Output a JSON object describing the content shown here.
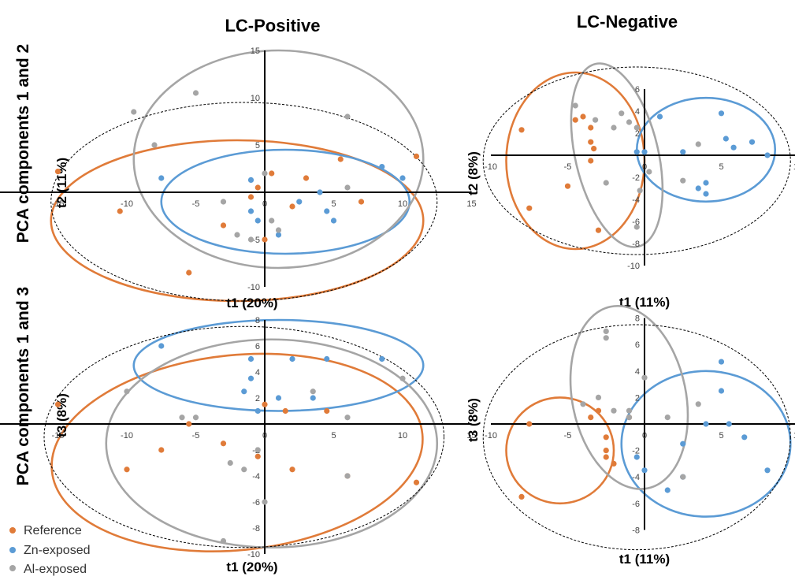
{
  "figure": {
    "col_titles": [
      "LC-Positive",
      "LC-Negative"
    ],
    "row_titles": [
      "PCA components 1 and 2",
      "PCA components 1 and 3"
    ],
    "legend": [
      {
        "label": "Reference",
        "color": "#e07b39"
      },
      {
        "label": "Zn-exposed",
        "color": "#5b9bd5"
      },
      {
        "label": "Al-exposed",
        "color": "#a5a5a5"
      }
    ]
  },
  "chart_data": [
    {
      "type": "scatter",
      "title": "LC-Positive",
      "xlabel": "t1 (20%)",
      "ylabel": "t2 (11%)",
      "xlim": [
        -20,
        15
      ],
      "ylim": [
        -10,
        15
      ],
      "xticks": [
        -20,
        -15,
        -10,
        -5,
        0,
        5,
        10,
        15
      ],
      "yticks": [
        -10,
        -5,
        5,
        10,
        15
      ],
      "series": [
        {
          "name": "Reference",
          "color": "#e07b39",
          "points": [
            [
              -15,
              2.2
            ],
            [
              -10.5,
              -2
            ],
            [
              -5.5,
              -8.5
            ],
            [
              -3,
              -3.5
            ],
            [
              -1,
              -0.5
            ],
            [
              -0.5,
              0.5
            ],
            [
              0,
              -5
            ],
            [
              0.5,
              2
            ],
            [
              2,
              -1.5
            ],
            [
              3,
              1.5
            ],
            [
              5.5,
              3.5
            ],
            [
              7,
              -1
            ],
            [
              11,
              3.8
            ]
          ]
        },
        {
          "name": "Zn-exposed",
          "color": "#5b9bd5",
          "points": [
            [
              -7.5,
              1.5
            ],
            [
              -1,
              1.3
            ],
            [
              -1,
              -2
            ],
            [
              -0.5,
              -3
            ],
            [
              1,
              -4.5
            ],
            [
              2.5,
              -1
            ],
            [
              4,
              0
            ],
            [
              4.5,
              -2
            ],
            [
              5,
              -3
            ],
            [
              8.5,
              2.7
            ],
            [
              10,
              1.5
            ]
          ]
        },
        {
          "name": "Al-exposed",
          "color": "#a5a5a5",
          "points": [
            [
              -9.5,
              8.5
            ],
            [
              -8,
              5
            ],
            [
              -5,
              10.5
            ],
            [
              -3,
              -1
            ],
            [
              -2,
              -4.5
            ],
            [
              -1,
              -5
            ],
            [
              0,
              2
            ],
            [
              0.5,
              -3
            ],
            [
              1,
              -4
            ],
            [
              6,
              8
            ],
            [
              6,
              0.5
            ]
          ]
        }
      ],
      "ellipses": [
        {
          "group": "Reference",
          "color": "#e07b39",
          "center": [
            -2,
            -3
          ],
          "radii": [
            13.5,
            8.5
          ],
          "rotation": 0
        },
        {
          "group": "Zn-exposed",
          "color": "#5b9bd5",
          "center": [
            1.5,
            -1
          ],
          "radii": [
            9,
            5.5
          ],
          "rotation": 0
        },
        {
          "group": "Al-exposed",
          "color": "#a5a5a5",
          "center": [
            1,
            3.5
          ],
          "radii": [
            10.5,
            11.5
          ],
          "rotation": 0
        },
        {
          "group": "Hotelling T2",
          "color": "#000000",
          "dashed": true,
          "center": [
            -1.5,
            -1
          ],
          "radii": [
            14,
            10.5
          ],
          "rotation": 0
        }
      ]
    },
    {
      "type": "scatter",
      "title": "LC-Negative",
      "xlabel": "t1 (11%)",
      "ylabel": "t2 (8%)",
      "xlim": [
        -10,
        10
      ],
      "ylim": [
        -10,
        6
      ],
      "xticks": [
        -10,
        -5,
        0,
        5,
        10
      ],
      "yticks": [
        -10,
        -8,
        -6,
        -4,
        -2,
        2,
        4,
        6
      ],
      "series": [
        {
          "name": "Reference",
          "color": "#e07b39",
          "points": [
            [
              -8,
              2.3
            ],
            [
              -7.5,
              -4.8
            ],
            [
              -5,
              -2.8
            ],
            [
              -4.5,
              3.2
            ],
            [
              -4,
              3.5
            ],
            [
              -3.5,
              2.5
            ],
            [
              -3.5,
              1.2
            ],
            [
              -3.3,
              0.6
            ],
            [
              -3.5,
              -0.5
            ],
            [
              -3,
              -6.8
            ]
          ]
        },
        {
          "name": "Zn-exposed",
          "color": "#5b9bd5",
          "points": [
            [
              -0.5,
              0.3
            ],
            [
              0,
              0.3
            ],
            [
              1,
              3.5
            ],
            [
              2.5,
              0.3
            ],
            [
              3.5,
              -3
            ],
            [
              4,
              -2.5
            ],
            [
              4,
              -3.5
            ],
            [
              5,
              3.8
            ],
            [
              5.3,
              1.5
            ],
            [
              5.8,
              0.7
            ],
            [
              7,
              1.2
            ],
            [
              8,
              0
            ]
          ]
        },
        {
          "name": "Al-exposed",
          "color": "#a5a5a5",
          "points": [
            [
              -4.5,
              4.5
            ],
            [
              -3.2,
              3.2
            ],
            [
              -2.5,
              -2.5
            ],
            [
              -2,
              2.5
            ],
            [
              -1.5,
              3.8
            ],
            [
              -1,
              3
            ],
            [
              -0.5,
              2.5
            ],
            [
              -0.3,
              -3.2
            ],
            [
              -0.5,
              -6.5
            ],
            [
              0.3,
              -1.5
            ],
            [
              2.5,
              -2.3
            ],
            [
              3.5,
              1
            ]
          ]
        }
      ],
      "ellipses": [
        {
          "group": "Reference",
          "color": "#e07b39",
          "center": [
            -4.5,
            -0.5
          ],
          "radii": [
            4.5,
            8
          ],
          "rotation": 0
        },
        {
          "group": "Zn-exposed",
          "color": "#5b9bd5",
          "center": [
            4,
            0.5
          ],
          "radii": [
            4.5,
            4.7
          ],
          "rotation": 0
        },
        {
          "group": "Al-exposed",
          "color": "#a5a5a5",
          "center": [
            -1.8,
            0
          ],
          "radii": [
            2.7,
            8.5
          ],
          "rotation": -0.23
        },
        {
          "group": "Hotelling T2",
          "color": "#000000",
          "dashed": true,
          "center": [
            -0.5,
            -0.5
          ],
          "radii": [
            10,
            8.5
          ],
          "rotation": 0
        }
      ]
    },
    {
      "type": "scatter",
      "title": "",
      "xlabel": "t1 (20%)",
      "ylabel": "t3 (8%)",
      "xlim": [
        -20,
        15
      ],
      "ylim": [
        -10,
        8
      ],
      "xticks": [
        -20,
        -15,
        -10,
        -5,
        0,
        5,
        10,
        15
      ],
      "yticks": [
        -10,
        -8,
        -6,
        -4,
        -2,
        2,
        4,
        6,
        8
      ],
      "series": [
        {
          "name": "Reference",
          "color": "#e07b39",
          "points": [
            [
              -15,
              1.5
            ],
            [
              -10,
              -3.5
            ],
            [
              -7.5,
              -2
            ],
            [
              -5.5,
              0
            ],
            [
              -3,
              -1.5
            ],
            [
              0,
              1.5
            ],
            [
              1.5,
              1
            ],
            [
              2,
              -3.5
            ],
            [
              4.5,
              1
            ],
            [
              6,
              -4
            ],
            [
              11,
              -4.5
            ],
            [
              -0.5,
              -2.5
            ]
          ]
        },
        {
          "name": "Zn-exposed",
          "color": "#5b9bd5",
          "points": [
            [
              -7.5,
              6
            ],
            [
              -1.5,
              2.5
            ],
            [
              -1,
              3.5
            ],
            [
              -1,
              5
            ],
            [
              -0.5,
              1
            ],
            [
              1,
              2
            ],
            [
              2,
              5
            ],
            [
              3.5,
              2
            ],
            [
              4.5,
              5
            ],
            [
              8.5,
              5
            ]
          ]
        },
        {
          "name": "Al-exposed",
          "color": "#a5a5a5",
          "points": [
            [
              -10,
              2.5
            ],
            [
              -6,
              0.5
            ],
            [
              -5,
              0.5
            ],
            [
              -2.5,
              -3
            ],
            [
              -1.5,
              -3.5
            ],
            [
              -0.5,
              -2
            ],
            [
              0,
              -6
            ],
            [
              3.5,
              2.5
            ],
            [
              6,
              0.5
            ],
            [
              6,
              -4
            ],
            [
              10,
              3.5
            ],
            [
              -3,
              -9
            ]
          ]
        }
      ],
      "ellipses": [
        {
          "group": "Reference",
          "color": "#e07b39",
          "center": [
            -2,
            -2.2
          ],
          "radii": [
            13.5,
            7.5
          ],
          "rotation": -0.1
        },
        {
          "group": "Zn-exposed",
          "color": "#5b9bd5",
          "center": [
            1,
            4.5
          ],
          "radii": [
            10.5,
            3.5
          ],
          "rotation": 0
        },
        {
          "group": "Al-exposed",
          "color": "#a5a5a5",
          "center": [
            0.5,
            -1.5
          ],
          "radii": [
            12,
            8
          ],
          "rotation": 0
        },
        {
          "group": "Hotelling T2",
          "color": "#000000",
          "dashed": true,
          "center": [
            -1.5,
            -1
          ],
          "radii": [
            14.5,
            8.5
          ],
          "rotation": 0
        }
      ]
    },
    {
      "type": "scatter",
      "title": "",
      "xlabel": "t1 (11%)",
      "ylabel": "t3 (8%)",
      "xlim": [
        -10,
        10
      ],
      "ylim": [
        -8,
        8
      ],
      "xticks": [
        -10,
        -5,
        0,
        5,
        10
      ],
      "yticks": [
        -8,
        -6,
        -4,
        -2,
        2,
        4,
        6,
        8
      ],
      "series": [
        {
          "name": "Reference",
          "color": "#e07b39",
          "points": [
            [
              -7.5,
              0
            ],
            [
              -8,
              -5.5
            ],
            [
              -3.5,
              0.5
            ],
            [
              -3,
              1
            ],
            [
              -2.5,
              -1
            ],
            [
              -2.5,
              -2
            ],
            [
              -2.5,
              -2.5
            ],
            [
              -2,
              -3
            ],
            [
              -1,
              0.5
            ]
          ]
        },
        {
          "name": "Zn-exposed",
          "color": "#5b9bd5",
          "points": [
            [
              -0.5,
              -2.5
            ],
            [
              0,
              -3.5
            ],
            [
              1.5,
              -5
            ],
            [
              2.5,
              -1.5
            ],
            [
              2.5,
              -4
            ],
            [
              4,
              0
            ],
            [
              5,
              4.7
            ],
            [
              5,
              2.5
            ],
            [
              5.5,
              0
            ],
            [
              6.5,
              -1
            ],
            [
              8,
              -3.5
            ]
          ]
        },
        {
          "name": "Al-exposed",
          "color": "#a5a5a5",
          "points": [
            [
              -4,
              1.5
            ],
            [
              -3,
              2
            ],
            [
              -2.5,
              6.5
            ],
            [
              -2.5,
              7
            ],
            [
              -2,
              1
            ],
            [
              -1,
              1
            ],
            [
              -1,
              0.5
            ],
            [
              0,
              3.5
            ],
            [
              1.5,
              0.5
            ],
            [
              2.5,
              -4
            ],
            [
              3.5,
              1.5
            ]
          ]
        }
      ],
      "ellipses": [
        {
          "group": "Reference",
          "color": "#e07b39",
          "center": [
            -5.5,
            -2
          ],
          "radii": [
            3.5,
            4
          ],
          "rotation": 0
        },
        {
          "group": "Zn-exposed",
          "color": "#5b9bd5",
          "center": [
            4,
            -1.5
          ],
          "radii": [
            5.5,
            5.5
          ],
          "rotation": 0
        },
        {
          "group": "Al-exposed",
          "color": "#a5a5a5",
          "center": [
            -1,
            2
          ],
          "radii": [
            3.7,
            7
          ],
          "rotation": -0.2
        },
        {
          "group": "Hotelling T2",
          "color": "#000000",
          "dashed": true,
          "center": [
            -0.5,
            -1
          ],
          "radii": [
            10,
            8.5
          ],
          "rotation": 0
        }
      ]
    }
  ]
}
